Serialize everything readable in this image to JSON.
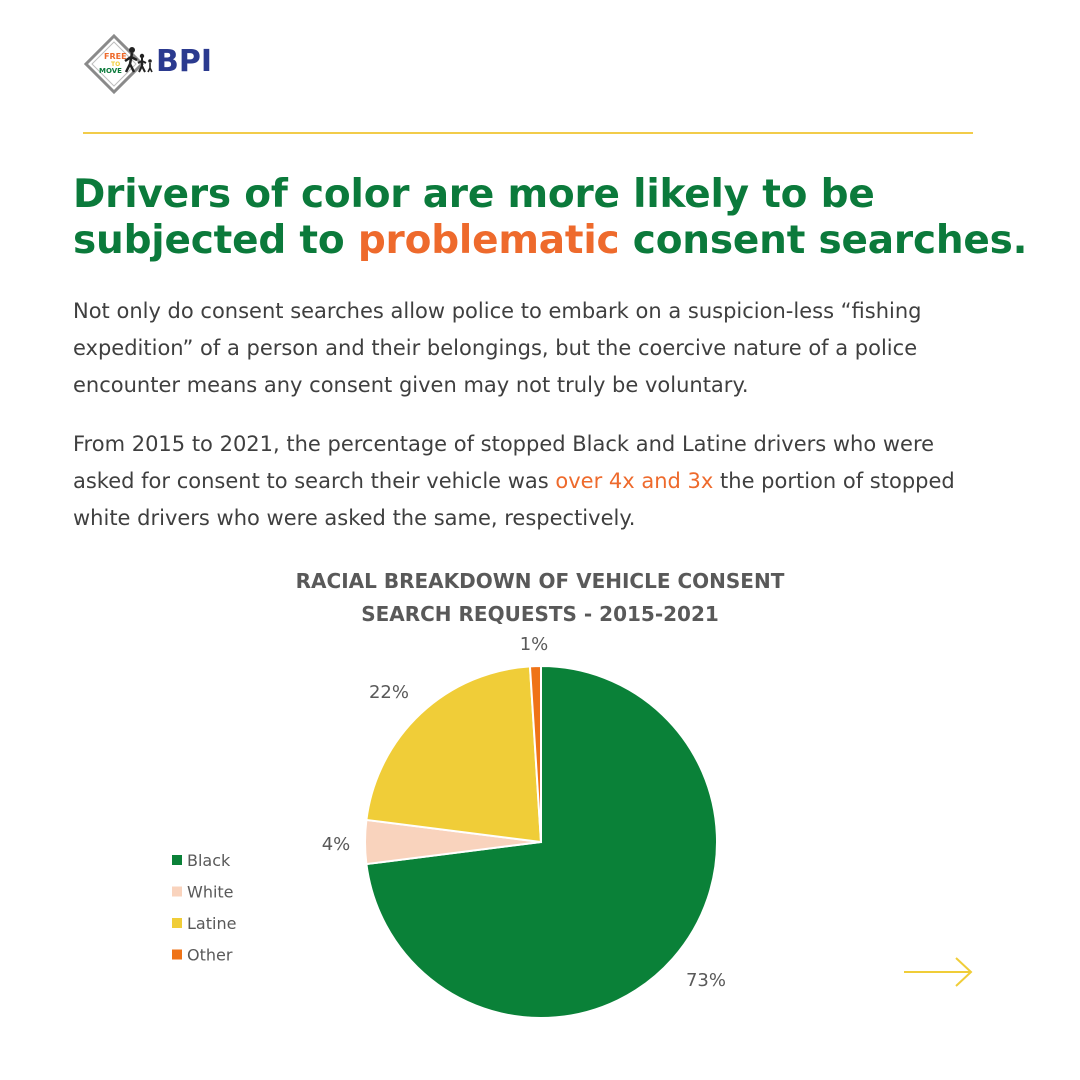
{
  "brand": {
    "logo_text": "BPI",
    "badge_text": "FREE TO MOVE"
  },
  "headline": {
    "before": "Drivers of color are more likely to be subjected to ",
    "highlight": "problematic",
    "after": " consent searches."
  },
  "paragraph1": "Not only do consent searches allow police to embark on a suspicion-less “fishing expedition” of a person and their belongings, but the coercive nature of a police encounter means any consent given may not truly be voluntary.",
  "paragraph2": {
    "before": "From 2015 to 2021, the percentage of stopped Black and Latine drivers who were asked for consent to search their vehicle was ",
    "highlight": "over 4x and 3x",
    "after": " the portion of stopped white drivers who were asked the same, respectively."
  },
  "colors": {
    "green": "#0b7a3b",
    "orange": "#ee6a2c",
    "yellow_divider": "#f2cc4a"
  },
  "icons": {
    "next": "arrow-right-icon"
  },
  "chart_data": {
    "type": "pie",
    "title_line1": "RACIAL BREAKDOWN OF VEHICLE CONSENT",
    "title_line2": "SEARCH REQUESTS - 2015-2021",
    "legend_position": "left",
    "series": [
      {
        "name": "Black",
        "value": 73,
        "label": "73%",
        "color": "#0a8138"
      },
      {
        "name": "White",
        "value": 4,
        "label": "4%",
        "color": "#f9d3bd"
      },
      {
        "name": "Latine",
        "value": 22,
        "label": "22%",
        "color": "#f0cd38"
      },
      {
        "name": "Other",
        "value": 1,
        "label": "1%",
        "color": "#ef7317"
      }
    ]
  }
}
